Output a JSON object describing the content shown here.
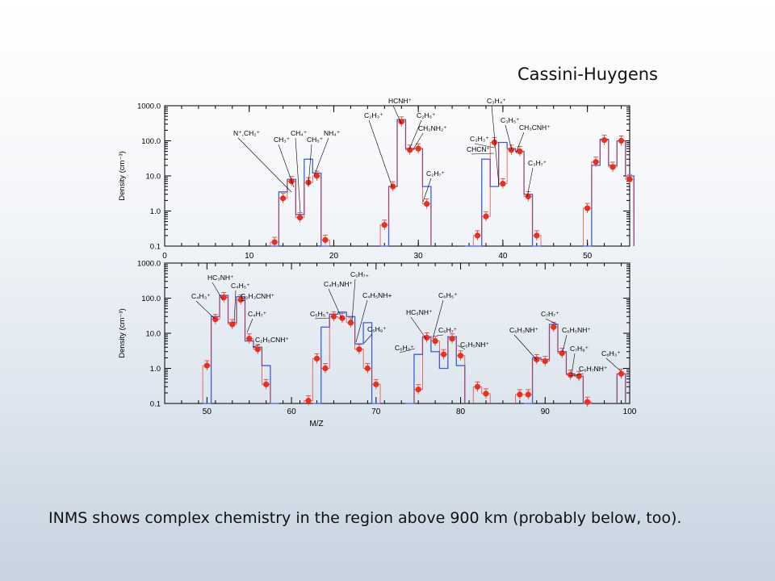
{
  "slide": {
    "title": "Cassini-Huygens",
    "caption": "INMS shows complex chemistry in the region above 900 km (probably below, too)."
  },
  "colors": {
    "model_blue": "#3a5fd9",
    "data_red": "#e8301f",
    "frame": "#000000"
  },
  "chart_data": [
    {
      "type": "step-histogram-with-points",
      "ylabel": "Density (cm⁻³)",
      "xlabel": "",
      "xlim": [
        0,
        55
      ],
      "ylim": [
        0.1,
        1000.0
      ],
      "yscale": "log",
      "yticks": [
        "0.1",
        "1.0",
        "10.0",
        "100.0",
        "1000.0"
      ],
      "xticks": [
        "0",
        "10",
        "20",
        "30",
        "40",
        "50"
      ],
      "series": [
        {
          "name": "",
          "kind": "model-step",
          "color": "#3a5fd9",
          "x": [
            13,
            14,
            15,
            16,
            17,
            18,
            19,
            26,
            27,
            28,
            29,
            30,
            31,
            36,
            37,
            38,
            39,
            40,
            41,
            42,
            43,
            44,
            50,
            51,
            52,
            53,
            54,
            55
          ],
          "y": [
            0.1,
            3.5,
            8,
            0.8,
            30,
            12,
            0.1,
            0.1,
            5,
            400,
            60,
            60,
            5,
            0.1,
            0.1,
            30,
            5,
            90,
            60,
            50,
            3,
            0.1,
            0.1,
            20,
            110,
            20,
            100,
            10
          ]
        },
        {
          "name": "",
          "kind": "data-points",
          "color": "#e8301f",
          "x": [
            13,
            14,
            15,
            16,
            17,
            18,
            19,
            26,
            27,
            28,
            29,
            30,
            31,
            37,
            38,
            39,
            40,
            41,
            42,
            43,
            44,
            50,
            51,
            52,
            53,
            54,
            55
          ],
          "y": [
            0.13,
            2.3,
            7,
            0.65,
            6.5,
            10,
            0.15,
            0.4,
            5,
            350,
            55,
            60,
            1.6,
            0.2,
            0.7,
            90,
            6,
            55,
            50,
            2.6,
            0.2,
            1.2,
            25,
            105,
            18,
            100,
            8
          ]
        }
      ],
      "annotations": [
        "N⁺,CH₂⁺",
        "CH₃⁺",
        "CH₄⁺",
        "CH₅⁺",
        "NH₄⁺",
        "C₂H₃⁺",
        "HCNH⁺",
        "C₂H₅⁺",
        "CH₂NH₂⁺",
        "C₂H₇⁺",
        "C₃H₄⁺",
        "C₃H₃⁺",
        "CHCN⁺",
        "C₃H₅⁺",
        "CH₃CNH⁺",
        "C₃H₇⁺"
      ]
    },
    {
      "type": "step-histogram-with-points",
      "ylabel": "Density (cm⁻³)",
      "xlabel": "M/Z",
      "xlim": [
        45,
        100
      ],
      "ylim": [
        0.1,
        1000.0
      ],
      "yscale": "log",
      "yticks": [
        "0.1",
        "1.0",
        "10.0",
        "100.0",
        "1000.0"
      ],
      "xticks": [
        "50",
        "60",
        "70",
        "80",
        "90",
        "100"
      ],
      "series": [
        {
          "name": "",
          "kind": "model-step",
          "color": "#3a5fd9",
          "x": [
            50,
            51,
            52,
            53,
            54,
            55,
            56,
            57,
            58,
            63,
            64,
            65,
            66,
            67,
            68,
            69,
            70,
            74,
            75,
            76,
            77,
            78,
            79,
            80,
            88,
            89,
            90,
            91,
            92,
            93,
            94,
            95,
            99
          ],
          "y": [
            0.1,
            30,
            120,
            20,
            110,
            6,
            4,
            1.2,
            0.1,
            0.1,
            15,
            35,
            40,
            30,
            5,
            20,
            0.1,
            0.1,
            2.5,
            8,
            3,
            1,
            8,
            1.2,
            0.1,
            2,
            1.8,
            18,
            3,
            0.7,
            0.6,
            0.1,
            0.7
          ],
          "xend": 100
        },
        {
          "name": "",
          "kind": "data-points",
          "color": "#e8301f",
          "x": [
            50,
            51,
            52,
            53,
            54,
            55,
            56,
            57,
            62,
            63,
            64,
            65,
            66,
            67,
            68,
            69,
            70,
            75,
            76,
            77,
            78,
            79,
            80,
            82,
            83,
            87,
            88,
            89,
            90,
            91,
            92,
            93,
            94,
            95,
            99
          ],
          "y": [
            1.2,
            25,
            105,
            18,
            90,
            7,
            3.5,
            0.35,
            0.12,
            1.9,
            1.0,
            30,
            27,
            20,
            3.5,
            1.0,
            0.35,
            0.25,
            7.5,
            6,
            2.5,
            7,
            2.3,
            0.3,
            0.19,
            0.18,
            0.18,
            1.8,
            1.6,
            15,
            2.7,
            0.65,
            0.6,
            0.11,
            0.7
          ]
        }
      ],
      "annotations": [
        "C₄H₃⁺",
        "HC₃NH⁺",
        "C₄H₅⁺",
        "C₂H₃CNH⁺",
        "C₄H₇⁺",
        "C₂H₅CNH⁺",
        "C₅H₅⁺",
        "C₄H₃NH⁺",
        "C₅H₇₊",
        "C₄H₅NH+",
        "C₅H₉⁺",
        "C₆H₅⁺",
        "HC₅NH⁺",
        "C₆H₇⁺",
        "C₆H₃⁺",
        "C₅H₅NH⁺",
        "C₇H₇⁺",
        "C₆H₃NH⁺",
        "C₆H₅NH⁺",
        "C₇H₉⁺",
        "C₈H₃⁺",
        "C₆H₇NH⁺"
      ]
    }
  ]
}
